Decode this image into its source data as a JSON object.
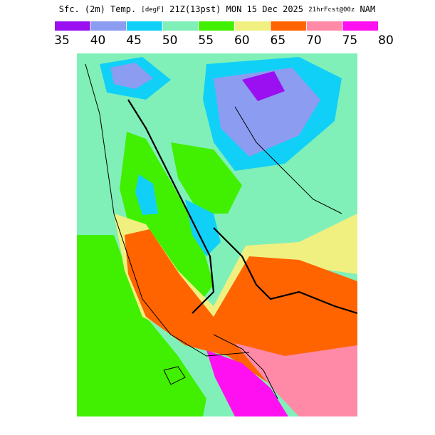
{
  "header": {
    "field": "Sfc. (2m) Temp.",
    "units": "[degF]",
    "valid": "21Z(13pst) MON 15 Dec 2025",
    "forecast": "21hrFcst@00z",
    "model": "NAM"
  },
  "colorbar": {
    "bins": [
      35,
      40,
      45,
      50,
      55,
      60,
      65,
      70,
      75,
      80
    ],
    "colors": [
      "#9a10f0",
      "#8c9cf0",
      "#10d0f8",
      "#80f0b8",
      "#40f000",
      "#f0f080",
      "#ff6400",
      "#ff8aa8",
      "#ff10f0"
    ]
  }
}
